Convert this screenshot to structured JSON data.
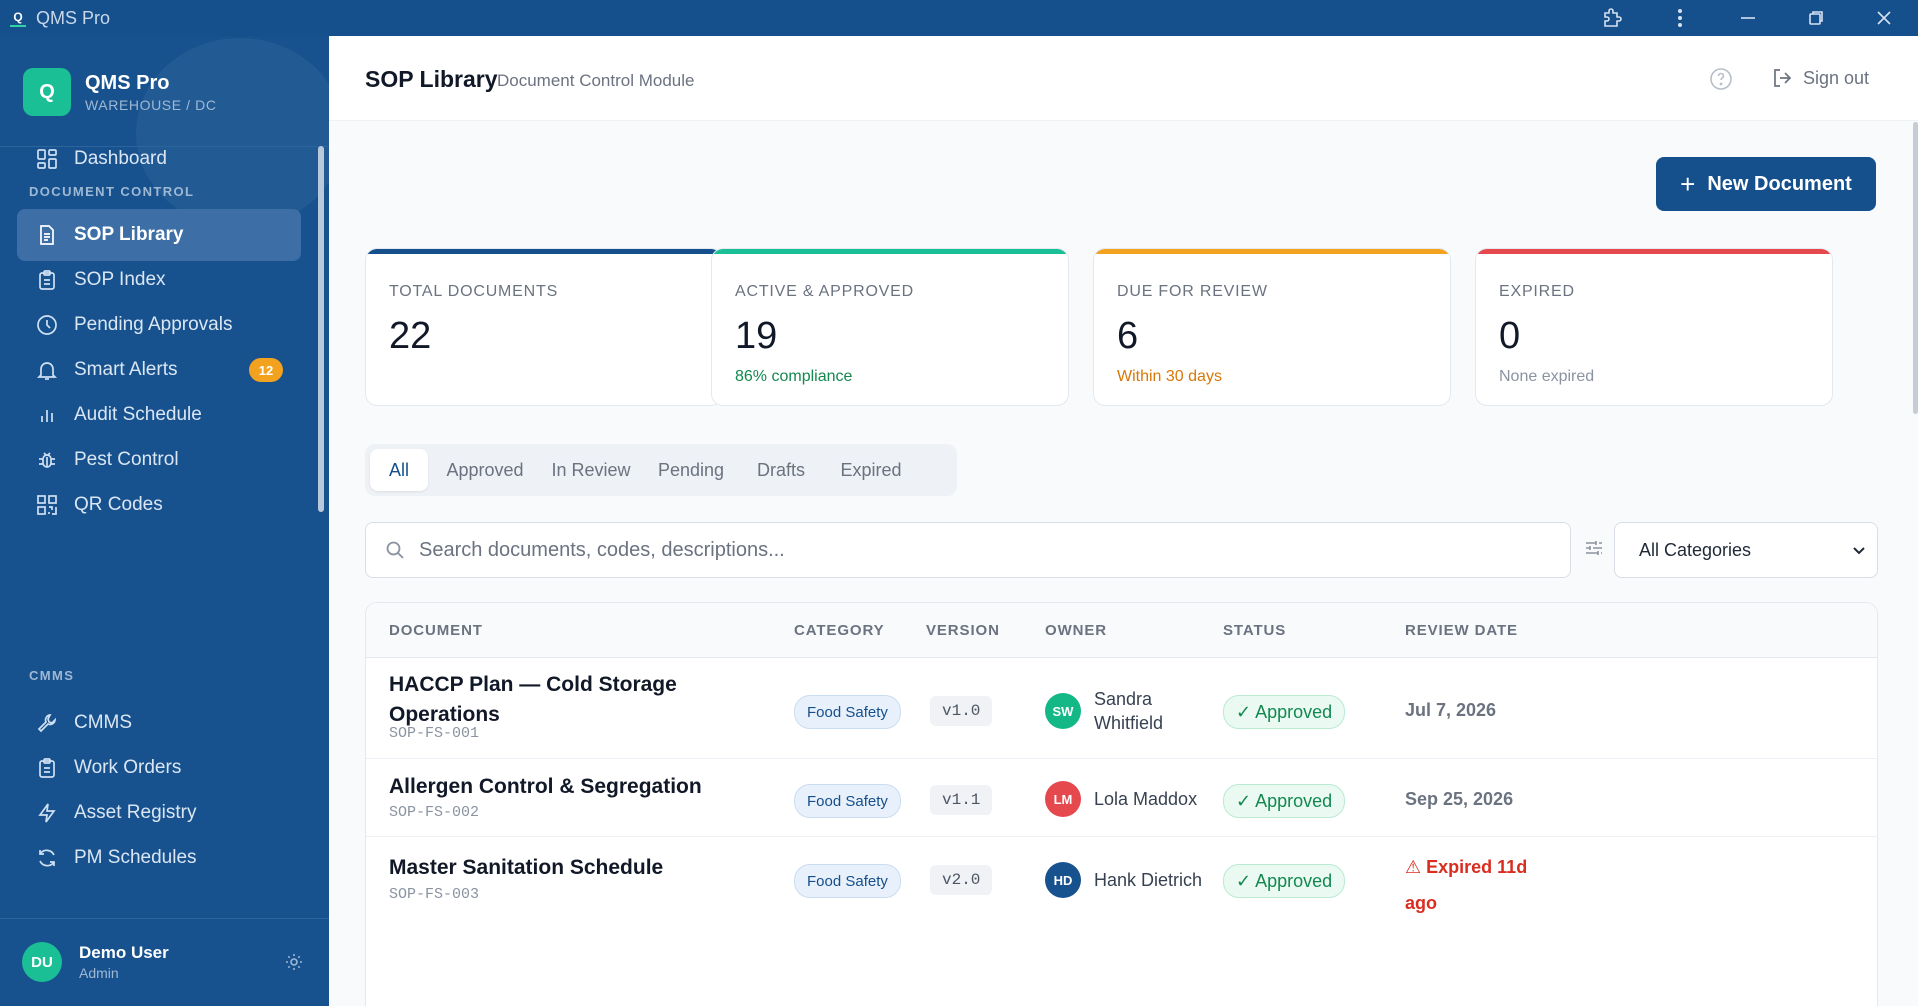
{
  "app": {
    "window_title": "QMS Pro",
    "logo_letter": "Q"
  },
  "sidebar": {
    "brand_letter": "Q",
    "brand_name": "QMS Pro",
    "brand_sub": "WAREHOUSE / DC",
    "dashboard": "Dashboard",
    "section_document_control": "DOCUMENT CONTROL",
    "items_dc": [
      {
        "label": "SOP Library",
        "icon": "document-icon"
      },
      {
        "label": "SOP Index",
        "icon": "clipboard-icon"
      },
      {
        "label": "Pending Approvals",
        "icon": "clock-icon"
      },
      {
        "label": "Smart Alerts",
        "icon": "bell-icon",
        "badge": "12"
      },
      {
        "label": "Audit Schedule",
        "icon": "bar-chart-icon"
      },
      {
        "label": "Pest Control",
        "icon": "bug-icon"
      },
      {
        "label": "QR Codes",
        "icon": "qr-code-icon"
      }
    ],
    "section_cmms": "CMMS",
    "items_cmms": [
      {
        "label": "CMMS",
        "icon": "wrench-icon"
      },
      {
        "label": "Work Orders",
        "icon": "clipboard-icon"
      },
      {
        "label": "Asset Registry",
        "icon": "lightning-icon"
      },
      {
        "label": "PM Schedules",
        "icon": "refresh-icon"
      }
    ],
    "user": {
      "initials": "DU",
      "name": "Demo User",
      "role": "Admin"
    }
  },
  "header": {
    "title": "SOP Library",
    "subtitle": "Document Control Module",
    "sign_out": "Sign out"
  },
  "actions": {
    "new_document": "New Document"
  },
  "stats": [
    {
      "label": "TOTAL DOCUMENTS",
      "value": "22",
      "sub": "",
      "color": "#154f8c"
    },
    {
      "label": "ACTIVE & APPROVED",
      "value": "19",
      "sub": "86% compliance",
      "color": "#1bbf95",
      "sub_color": "#12884f"
    },
    {
      "label": "DUE FOR REVIEW",
      "value": "6",
      "sub": "Within 30 days",
      "color": "#f3a21f",
      "sub_color": "#d97706"
    },
    {
      "label": "EXPIRED",
      "value": "0",
      "sub": "None expired",
      "color": "#e5484d",
      "sub_color": "#8a93a0"
    }
  ],
  "tabs": [
    "All",
    "Approved",
    "In Review",
    "Pending",
    "Drafts",
    "Expired"
  ],
  "active_tab": "All",
  "search": {
    "placeholder": "Search documents, codes, descriptions..."
  },
  "category_filter": {
    "selected": "All Categories"
  },
  "table": {
    "headers": [
      "DOCUMENT",
      "CATEGORY",
      "VERSION",
      "OWNER",
      "STATUS",
      "REVIEW DATE"
    ],
    "rows": [
      {
        "title": "HACCP Plan — Cold Storage Operations",
        "code": "SOP-FS-001",
        "category": "Food Safety",
        "version": "v1.0",
        "owner_initials": "SW",
        "owner_name": "Sandra Whitfield",
        "owner_color": "#14b886",
        "status": "✓ Approved",
        "review": "Jul 7, 2026"
      },
      {
        "title": "Allergen Control & Segregation",
        "code": "SOP-FS-002",
        "category": "Food Safety",
        "version": "v1.1",
        "owner_initials": "LM",
        "owner_name": "Lola Maddox",
        "owner_color": "#e5484d",
        "status": "✓ Approved",
        "review": "Sep 25, 2026"
      },
      {
        "title": "Master Sanitation Schedule",
        "code": "SOP-FS-003",
        "category": "Food Safety",
        "version": "v2.0",
        "owner_initials": "HD",
        "owner_name": "Hank Dietrich",
        "owner_color": "#17528f",
        "status": "✓ Approved",
        "review": "⚠ Expired 11d ago"
      }
    ]
  }
}
